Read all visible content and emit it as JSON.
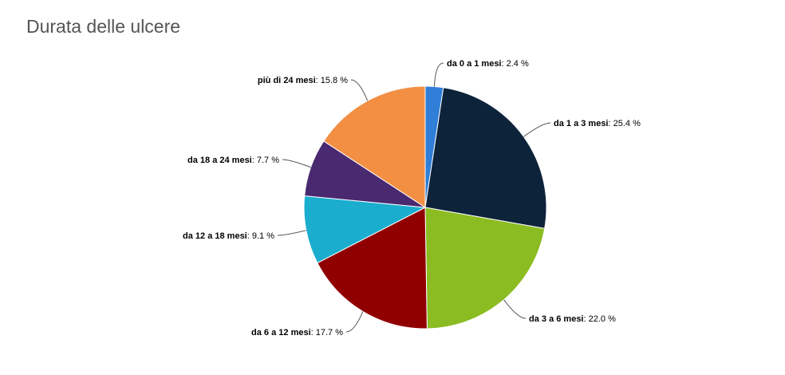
{
  "chart_data": {
    "type": "pie",
    "title": "Durata delle ulcere",
    "value_suffix": " %",
    "slices": [
      {
        "name": "da 0 a 1 mesi",
        "value": 2.4,
        "label": "2.4",
        "color": "#2f7ed8"
      },
      {
        "name": "da 1 a 3 mesi",
        "value": 25.4,
        "label": "25.4",
        "color": "#0d233a"
      },
      {
        "name": "da 3 a 6 mesi",
        "value": 22.0,
        "label": "22.0",
        "color": "#8bbc21"
      },
      {
        "name": "da 6 a 12 mesi",
        "value": 17.7,
        "label": "17.7",
        "color": "#910000"
      },
      {
        "name": "da 12 a 18 mesi",
        "value": 9.1,
        "label": "9.1",
        "color": "#1aadce"
      },
      {
        "name": "da 18 a 24 mesi",
        "value": 7.7,
        "label": "7.7",
        "color": "#492970"
      },
      {
        "name": "più di 24 mesi",
        "value": 15.8,
        "label": "15.8",
        "color": "#f28f43"
      }
    ]
  }
}
